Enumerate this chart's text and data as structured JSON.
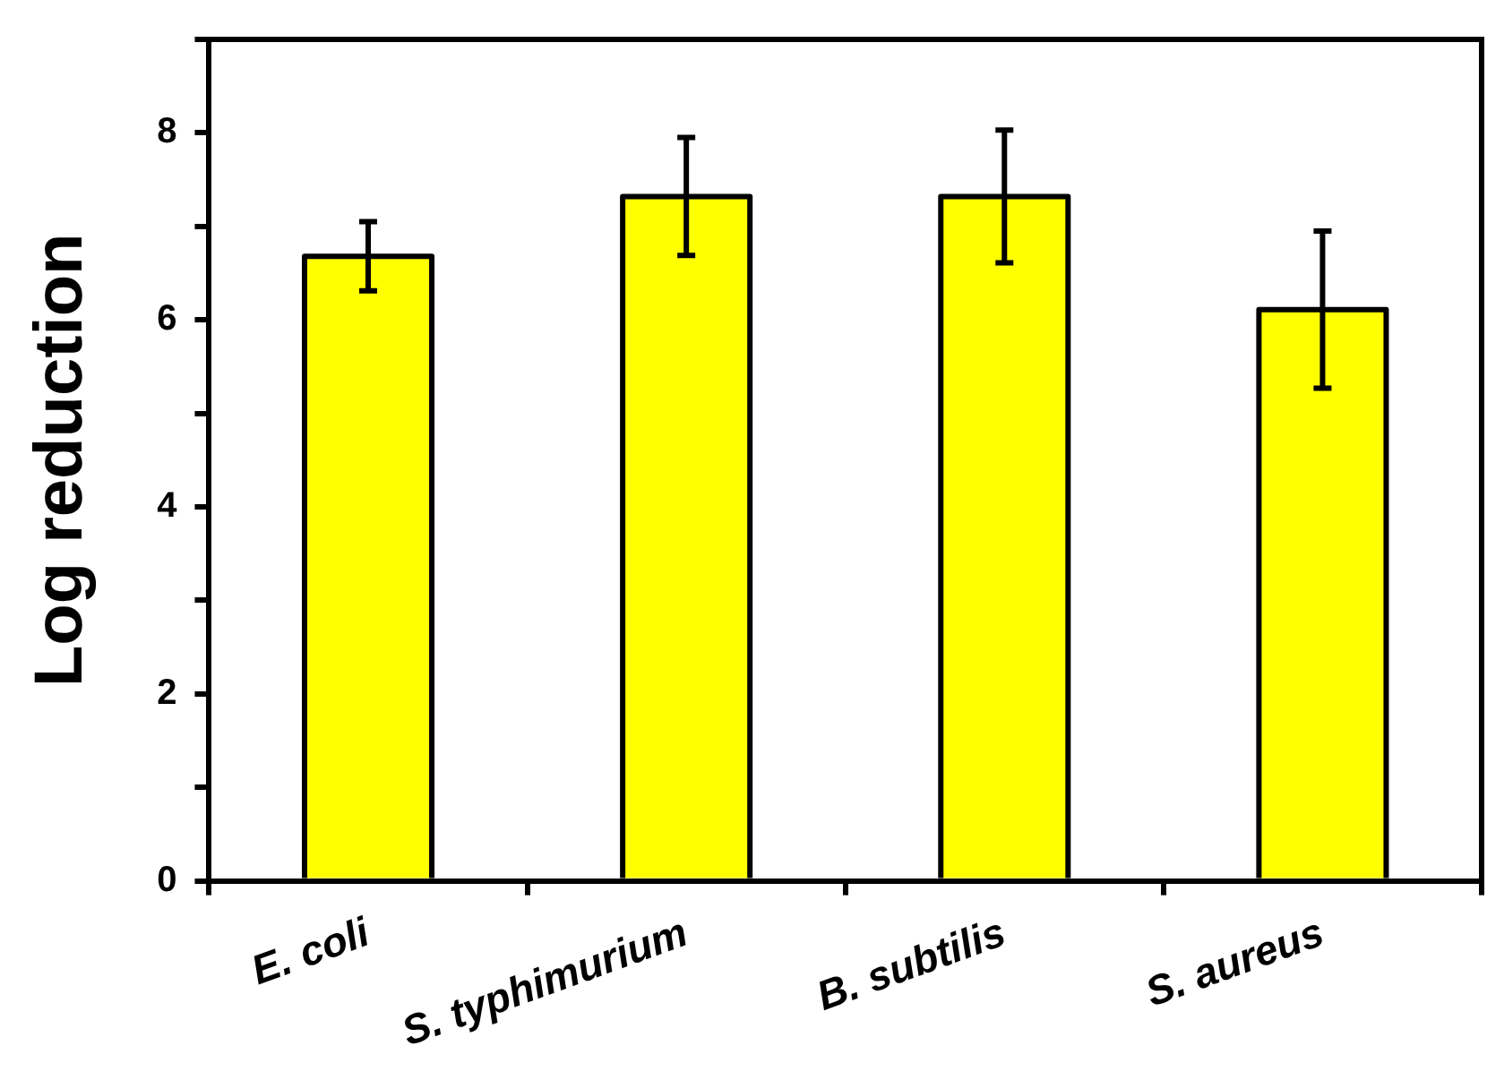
{
  "chart_data": {
    "type": "bar",
    "ylabel": "Log reduction",
    "categories": [
      "E. coli",
      "S. typhimurium",
      "B. subtilis",
      "S. aureus"
    ],
    "values": [
      6.68,
      7.32,
      7.32,
      6.11
    ],
    "errors": [
      0.37,
      0.63,
      0.71,
      0.84
    ],
    "color": "#ffff00",
    "ylim": [
      0,
      9
    ],
    "yticks": [
      0,
      {
        "value": 1,
        "label": null
      },
      2,
      {
        "value": 3,
        "label": null
      },
      4,
      {
        "value": 5,
        "label": null
      },
      6,
      {
        "value": 7,
        "label": null
      },
      8,
      {
        "value": 9,
        "label": null
      }
    ],
    "grid": false,
    "legend": false
  }
}
